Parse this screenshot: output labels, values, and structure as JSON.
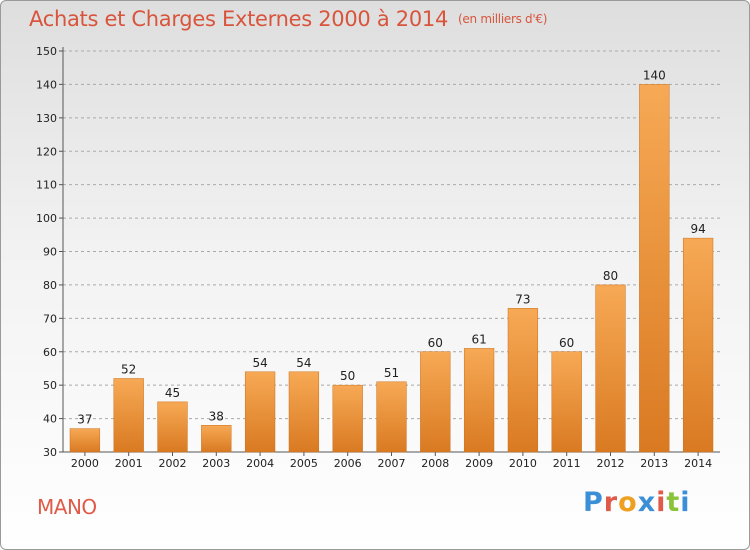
{
  "header": {
    "title": "Achats et Charges Externes 2000 à 2014",
    "unit": "(en milliers d'€)"
  },
  "commune_name": "MANO",
  "logo": {
    "text": "Proxiti",
    "letter_colors": [
      "#3b8fd6",
      "#e05a47",
      "#f0a020",
      "#3b8fd6",
      "#e05a47",
      "#8ac33a",
      "#3b8fd6"
    ]
  },
  "colors": {
    "bar_light": "#f7a955",
    "bar_dark": "#d97a22",
    "text": "#222222",
    "grid": "#a9a9a9"
  },
  "chart_data": {
    "type": "bar",
    "title": "Achats et Charges Externes 2000 à 2014",
    "xlabel": "",
    "ylabel": "",
    "categories": [
      "2000",
      "2001",
      "2002",
      "2003",
      "2004",
      "2005",
      "2006",
      "2007",
      "2008",
      "2009",
      "2010",
      "2011",
      "2012",
      "2013",
      "2014"
    ],
    "values": [
      37,
      52,
      45,
      38,
      54,
      54,
      50,
      51,
      60,
      61,
      73,
      60,
      80,
      140,
      94
    ],
    "ylim": [
      30,
      150
    ],
    "yticks": [
      30,
      40,
      50,
      60,
      70,
      80,
      90,
      100,
      110,
      120,
      130,
      140,
      150
    ],
    "grid": true,
    "legend": "none"
  }
}
